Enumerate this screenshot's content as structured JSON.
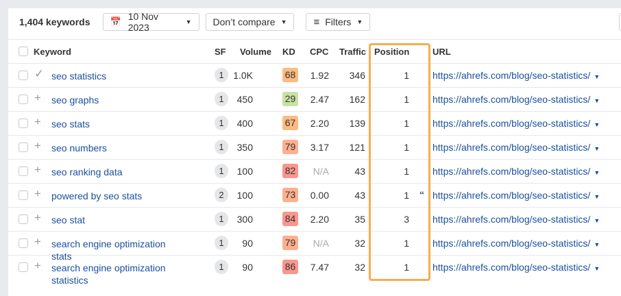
{
  "toolbar": {
    "keyword_count": "1,404 keywords",
    "date": "10 Nov 2023",
    "compare": "Don’t compare",
    "filters": "Filters"
  },
  "columns": [
    "Keyword",
    "SF",
    "Volume",
    "KD",
    "CPC",
    "Traffic",
    "Position",
    "URL"
  ],
  "highlight_color": "#f9ac4f",
  "rows": [
    {
      "icon": "check",
      "keyword": "seo statistics",
      "sf": "1",
      "volume": "1.0K",
      "kd": "68",
      "kd_color": "#fdbb80",
      "cpc": "1.92",
      "traffic": "346",
      "position": "1",
      "url": "https://ahrefs.com/blog/seo-statistics/"
    },
    {
      "icon": "plus",
      "keyword": "seo graphs",
      "sf": "1",
      "volume": "450",
      "kd": "29",
      "kd_color": "#c8e2a4",
      "cpc": "2.47",
      "traffic": "162",
      "position": "1",
      "url": "https://ahrefs.com/blog/seo-statistics/"
    },
    {
      "icon": "plus",
      "keyword": "seo stats",
      "sf": "1",
      "volume": "400",
      "kd": "67",
      "kd_color": "#fdbb80",
      "cpc": "2.20",
      "traffic": "139",
      "position": "1",
      "url": "https://ahrefs.com/blog/seo-statistics/"
    },
    {
      "icon": "plus",
      "keyword": "seo numbers",
      "sf": "1",
      "volume": "350",
      "kd": "79",
      "kd_color": "#fdb08f",
      "cpc": "3.17",
      "traffic": "121",
      "position": "1",
      "url": "https://ahrefs.com/blog/seo-statistics/"
    },
    {
      "icon": "plus",
      "keyword": "seo ranking data",
      "sf": "1",
      "volume": "100",
      "kd": "82",
      "kd_color": "#f9968e",
      "cpc": "N/A",
      "traffic": "43",
      "position": "1",
      "url": "https://ahrefs.com/blog/seo-statistics/"
    },
    {
      "icon": "plus",
      "keyword": "powered by seo stats",
      "sf": "2",
      "volume": "100",
      "kd": "73",
      "kd_color": "#fdb08f",
      "cpc": "0.00",
      "traffic": "43",
      "position": "1",
      "quote": true,
      "url": "https://ahrefs.com/blog/seo-statistics/"
    },
    {
      "icon": "plus",
      "keyword": "seo stat",
      "sf": "1",
      "volume": "300",
      "kd": "84",
      "kd_color": "#f9968e",
      "cpc": "2.20",
      "traffic": "35",
      "position": "3",
      "url": "https://ahrefs.com/blog/seo-statistics/"
    },
    {
      "icon": "plus",
      "keyword": "search engine optimization stats",
      "sf": "1",
      "volume": "90",
      "kd": "79",
      "kd_color": "#fdb08f",
      "cpc": "N/A",
      "traffic": "32",
      "position": "1",
      "url": "https://ahrefs.com/blog/seo-statistics/"
    },
    {
      "icon": "plus",
      "keyword": "search engine optimization statistics",
      "sf": "1",
      "volume": "90",
      "kd": "86",
      "kd_color": "#f9968e",
      "cpc": "7.47",
      "traffic": "32",
      "position": "1",
      "url": "https://ahrefs.com/blog/seo-statistics/"
    }
  ]
}
